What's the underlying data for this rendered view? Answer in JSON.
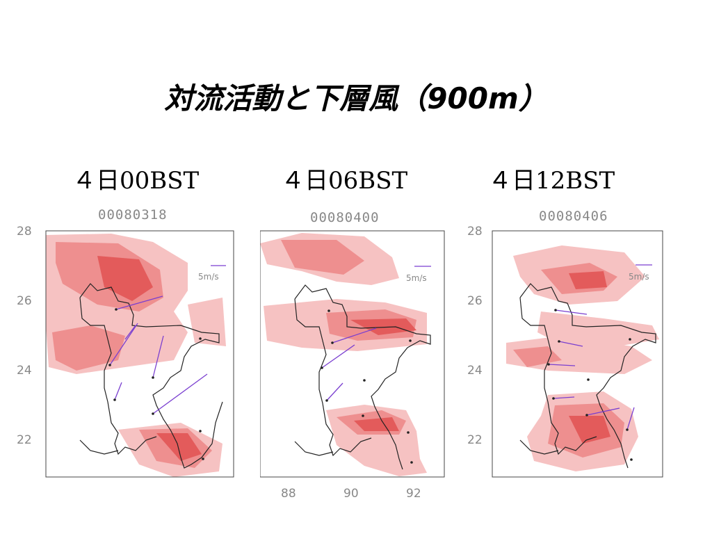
{
  "title": "対流活動と下層風（900m）",
  "panels": [
    {
      "time_label": "４日00BST",
      "code": "00080318",
      "legend": "5m/s"
    },
    {
      "time_label": "４日06BST",
      "code": "00080400",
      "legend": "5m/s"
    },
    {
      "time_label": "４日12BST",
      "code": "00080406",
      "legend": "5m/s"
    }
  ],
  "y_ticks": [
    "28",
    "26",
    "24",
    "22"
  ],
  "x_ticks": [
    "88",
    "90",
    "92"
  ],
  "colors": {
    "light_red": "#f6c2c2",
    "mid_red": "#ee8f8f",
    "dark_red": "#e35b5b",
    "arrow": "#7a3fd0"
  }
}
